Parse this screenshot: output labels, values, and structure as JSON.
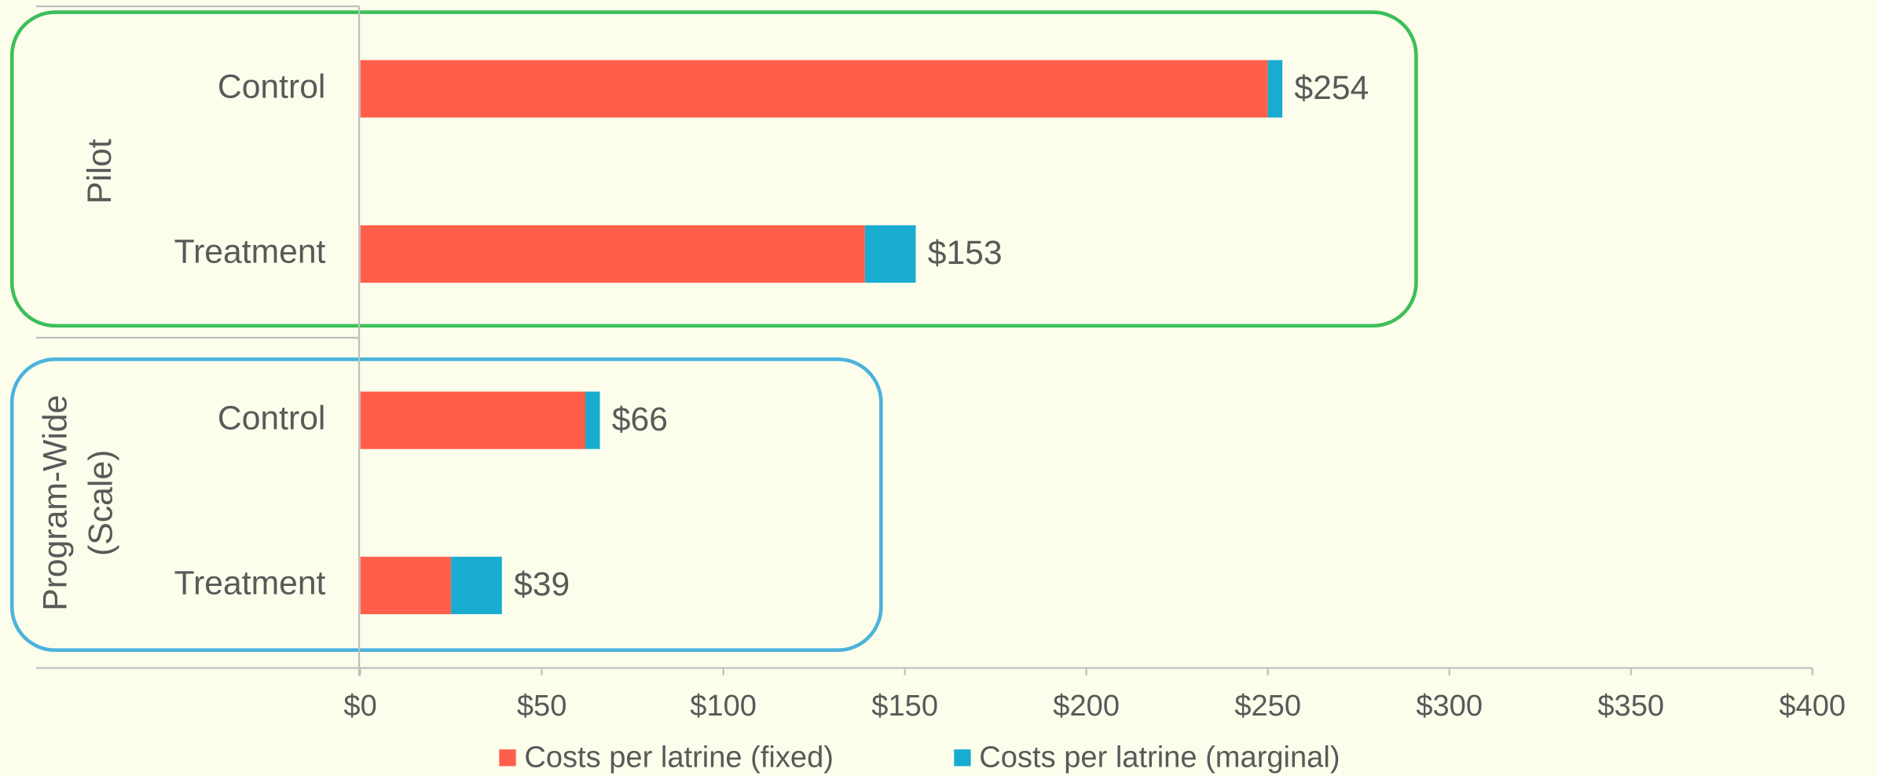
{
  "chart_data": {
    "type": "stacked-barh",
    "groups": [
      [
        "Pilot"
      ],
      [
        "Program-Wide",
        "(Scale)"
      ]
    ],
    "categories": [
      "Control",
      "Treatment",
      "Control",
      "Treatment"
    ],
    "series": [
      {
        "name": "Costs per latrine (fixed)",
        "color": "#ff5f4a",
        "values": [
          250,
          139,
          62,
          25
        ]
      },
      {
        "name": "Costs per latrine (marginal)",
        "color": "#17acd0",
        "values": [
          4,
          14,
          4,
          14
        ]
      }
    ],
    "totals": [
      254,
      153,
      66,
      39
    ],
    "total_labels": [
      "$254",
      "$153",
      "$66",
      "$39"
    ],
    "xlim": [
      0,
      400
    ],
    "xticks": [
      {
        "value": 0,
        "label": "$0"
      },
      {
        "value": 50,
        "label": "$50"
      },
      {
        "value": 100,
        "label": "$100"
      },
      {
        "value": 150,
        "label": "$150"
      },
      {
        "value": 200,
        "label": "$200"
      },
      {
        "value": 250,
        "label": "$250"
      },
      {
        "value": 300,
        "label": "$300"
      },
      {
        "value": 350,
        "label": "$350"
      },
      {
        "value": 400,
        "label": "$400"
      }
    ],
    "legend": "bottom"
  }
}
